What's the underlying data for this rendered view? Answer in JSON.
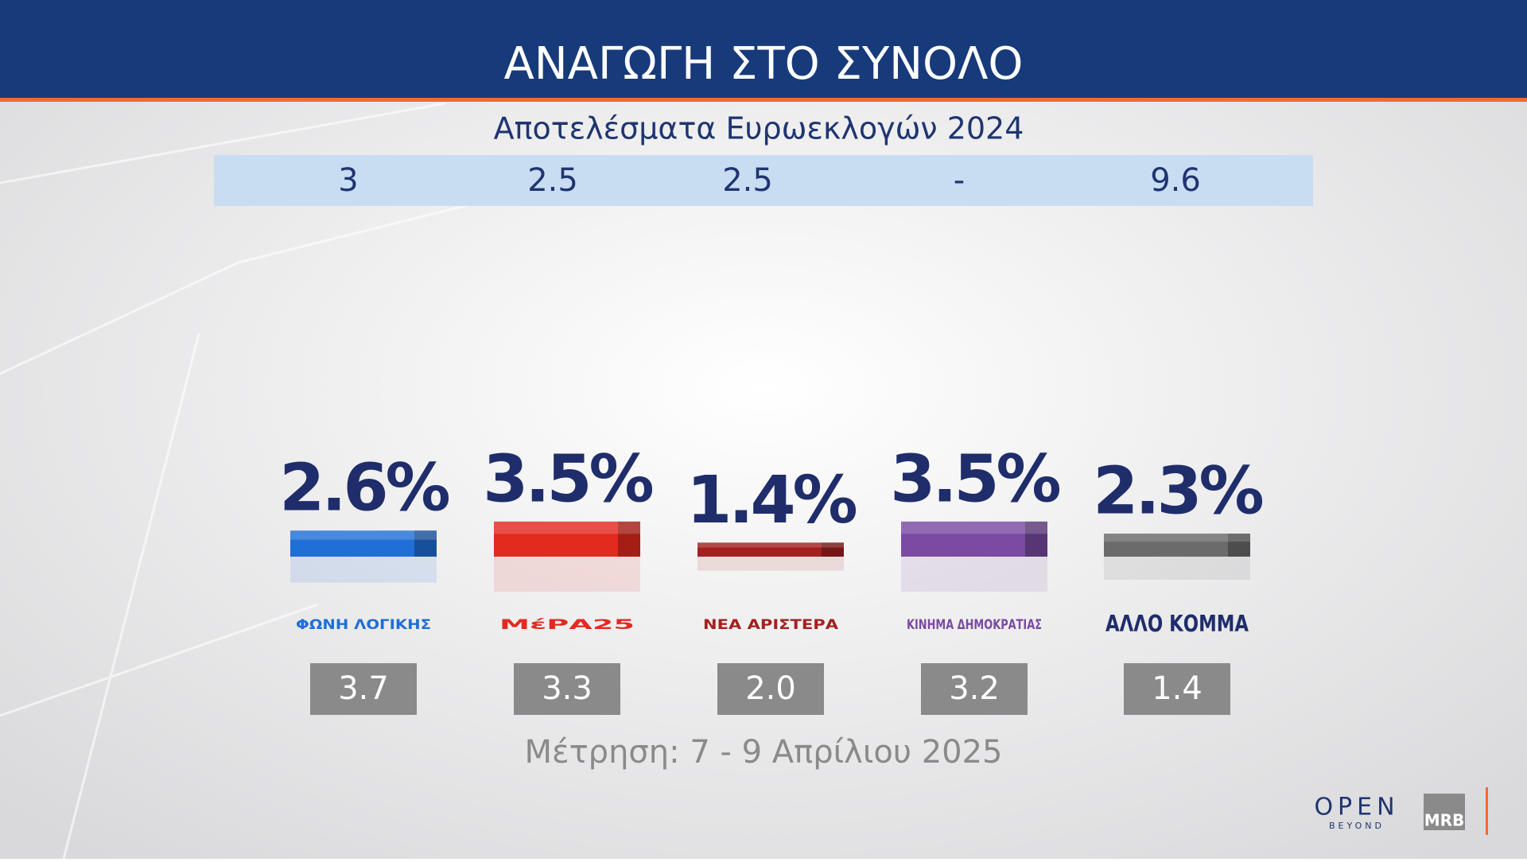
{
  "chart_data": {
    "type": "bar",
    "title": "ΑΝΑΓΩΓΗ ΣΤΟ ΣΥΝΟΛΟ",
    "categories": [
      "ΦΩΝΗ ΛΟΓΙΚΗΣ",
      "ΜέΡΑ25",
      "ΝΕΑ ΑΡΙΣΤΕΡΑ",
      "ΚΙΝΗΜΑ ΔΗΜΟΚΡΑΤΙΑΣ",
      "ΑΛΛΟ ΚΟΜΜΑ"
    ],
    "values": [
      2.6,
      3.5,
      1.4,
      3.5,
      2.3
    ],
    "value_labels": [
      "2.6%",
      "3.5%",
      "1.4%",
      "3.5%",
      "2.3%"
    ],
    "colors": [
      "#1f6fd6",
      "#e32a1f",
      "#a3201f",
      "#7b4aa3",
      "#6b6b6b"
    ],
    "euro_2024": {
      "label": "Αποτελέσματα Ευρωεκλογών 2024",
      "values": [
        3,
        2.5,
        2.5,
        null,
        9.6
      ],
      "value_labels": [
        "3",
        "2.5",
        "2.5",
        "-",
        "9.6"
      ]
    },
    "previous": {
      "values": [
        3.7,
        3.3,
        2.0,
        3.2,
        1.4
      ],
      "value_labels": [
        "3.7",
        "3.3",
        "2.0",
        "3.2",
        "1.4"
      ]
    },
    "footnote": "Μέτρηση: 7 - 9 Απρίλιου 2025",
    "branding": {
      "channel": "OPEN",
      "tagline": "BEYOND",
      "pollster": "MRB"
    }
  }
}
